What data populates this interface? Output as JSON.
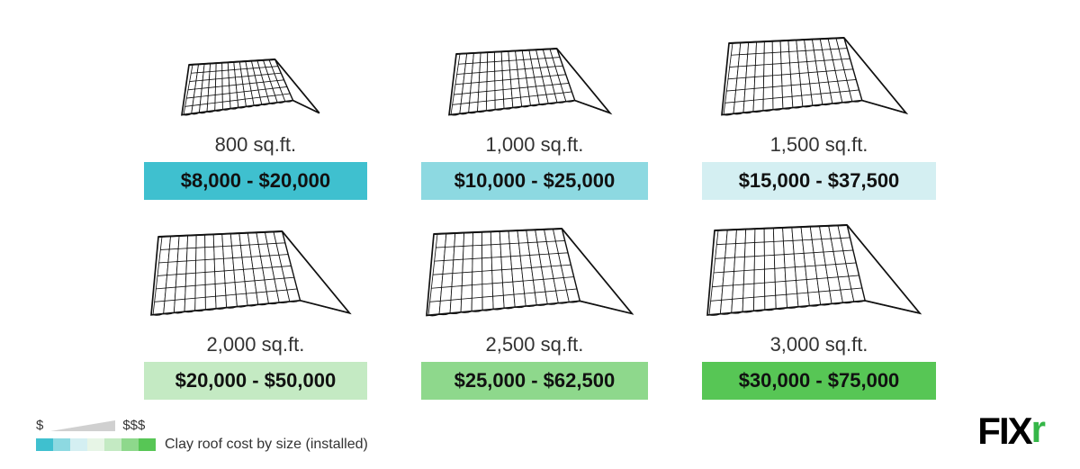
{
  "cards": [
    {
      "size": "800 sq.ft.",
      "price": "$8,000 - $20,000",
      "bg": "#3fc0cf",
      "roofScale": 0.68
    },
    {
      "size": "1,000 sq.ft.",
      "price": "$10,000 - $25,000",
      "bg": "#8dd9e1",
      "roofScale": 0.78
    },
    {
      "size": "1,500 sq.ft.",
      "price": "$15,000 - $37,500",
      "bg": "#d4eff2",
      "roofScale": 0.88
    },
    {
      "size": "2,000 sq.ft.",
      "price": "$20,000 - $50,000",
      "bg": "#c4eac3",
      "roofScale": 0.94
    },
    {
      "size": "2,500 sq.ft.",
      "price": "$25,000 - $62,500",
      "bg": "#8ed88c",
      "roofScale": 0.97
    },
    {
      "size": "3,000 sq.ft.",
      "price": "$30,000 - $75,000",
      "bg": "#57c655",
      "roofScale": 1.0
    }
  ],
  "legend": {
    "low": "$",
    "high": "$$$",
    "swatches": [
      "#3fc0cf",
      "#8dd9e1",
      "#d4eff2",
      "#e7f5e6",
      "#c4eac3",
      "#8ed88c",
      "#57c655"
    ],
    "caption": "Clay roof cost by size (installed)"
  },
  "logo": {
    "text": "FIX",
    "accent": "r",
    "accentColor": "#35b648"
  },
  "roof": {
    "stroke": "#111",
    "strokeWidth": 1.4,
    "fill": "#fff"
  }
}
